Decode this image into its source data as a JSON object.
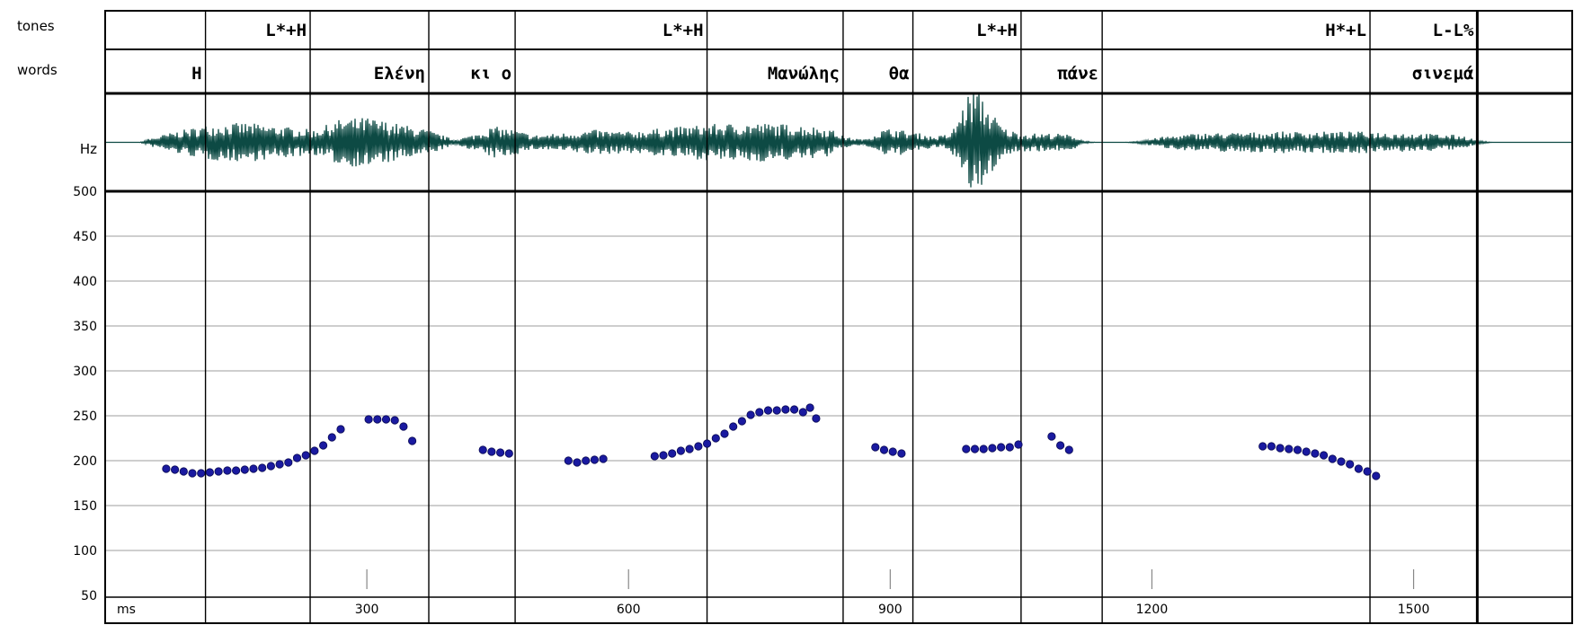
{
  "tier_labels": {
    "tones": "tones",
    "words": "words"
  },
  "wave_label": "Hz",
  "colors": {
    "waveform": "#0d4a44",
    "points": "#1a1aa0",
    "grid": "#bdbdbd",
    "boundary": "#000000",
    "background": "#ffffff"
  },
  "tones": [
    {
      "label": "L*+H",
      "end_ms": 235
    },
    {
      "label": "L*+H",
      "end_ms": 690
    },
    {
      "label": "L*+H",
      "end_ms": 1050
    },
    {
      "label": "H*+L",
      "end_ms": 1450
    },
    {
      "label": "L-L%",
      "end_ms": 1573
    }
  ],
  "words": [
    {
      "label": "Η",
      "start_ms": 0,
      "end_ms": 115
    },
    {
      "label": "Ελένη",
      "start_ms": 235,
      "end_ms": 371
    },
    {
      "label": "κι ο",
      "start_ms": 371,
      "end_ms": 470
    },
    {
      "label": "Μανώλης",
      "start_ms": 690,
      "end_ms": 846
    },
    {
      "label": "θα",
      "start_ms": 846,
      "end_ms": 926
    },
    {
      "label": "πάνε",
      "start_ms": 1050,
      "end_ms": 1143
    },
    {
      "label": "σινεμά",
      "start_ms": 1450,
      "end_ms": 1573
    }
  ],
  "word_boundaries_ms": [
    115,
    235,
    371,
    470,
    690,
    846,
    926,
    1050,
    1143,
    1450,
    1573
  ],
  "chart_data": {
    "type": "scatter",
    "title": "",
    "xlabel": "ms",
    "ylabel": "",
    "xlim": [
      0,
      1620
    ],
    "ylim": [
      50,
      500
    ],
    "x_ticks": [
      300,
      600,
      900,
      1200,
      1500
    ],
    "y_ticks": [
      50,
      100,
      150,
      200,
      250,
      300,
      350,
      400,
      450,
      500
    ],
    "grid": true,
    "series": [
      {
        "points": [
          [
            70,
            191
          ],
          [
            80,
            190
          ],
          [
            90,
            188
          ],
          [
            100,
            186
          ],
          [
            110,
            186
          ],
          [
            120,
            187
          ],
          [
            130,
            188
          ],
          [
            140,
            189
          ],
          [
            150,
            189
          ],
          [
            160,
            190
          ],
          [
            170,
            191
          ],
          [
            180,
            192
          ],
          [
            190,
            194
          ],
          [
            200,
            196
          ],
          [
            210,
            198
          ],
          [
            220,
            203
          ],
          [
            230,
            206
          ],
          [
            240,
            211
          ],
          [
            250,
            217
          ],
          [
            260,
            226
          ],
          [
            270,
            235
          ],
          [
            302,
            246
          ],
          [
            312,
            246
          ],
          [
            322,
            246
          ],
          [
            332,
            245
          ],
          [
            342,
            238
          ],
          [
            352,
            222
          ],
          [
            433,
            212
          ],
          [
            443,
            210
          ],
          [
            453,
            209
          ],
          [
            463,
            208
          ],
          [
            531,
            200
          ],
          [
            541,
            198
          ],
          [
            551,
            200
          ],
          [
            561,
            201
          ],
          [
            571,
            202
          ],
          [
            630,
            205
          ],
          [
            640,
            206
          ],
          [
            650,
            208
          ],
          [
            660,
            211
          ],
          [
            670,
            213
          ],
          [
            680,
            216
          ],
          [
            690,
            219
          ],
          [
            700,
            225
          ],
          [
            710,
            230
          ],
          [
            720,
            238
          ],
          [
            730,
            244
          ],
          [
            740,
            251
          ],
          [
            750,
            254
          ],
          [
            760,
            256
          ],
          [
            770,
            256
          ],
          [
            780,
            257
          ],
          [
            790,
            257
          ],
          [
            800,
            254
          ],
          [
            808,
            259
          ],
          [
            815,
            247
          ],
          [
            883,
            215
          ],
          [
            893,
            212
          ],
          [
            903,
            210
          ],
          [
            913,
            208
          ],
          [
            987,
            213
          ],
          [
            997,
            213
          ],
          [
            1007,
            213
          ],
          [
            1017,
            214
          ],
          [
            1027,
            215
          ],
          [
            1037,
            215
          ],
          [
            1047,
            218
          ],
          [
            1085,
            227
          ],
          [
            1095,
            217
          ],
          [
            1105,
            212
          ],
          [
            1327,
            216
          ],
          [
            1337,
            216
          ],
          [
            1347,
            214
          ],
          [
            1357,
            213
          ],
          [
            1367,
            212
          ],
          [
            1377,
            210
          ],
          [
            1387,
            208
          ],
          [
            1397,
            206
          ],
          [
            1407,
            202
          ],
          [
            1417,
            199
          ],
          [
            1427,
            196
          ],
          [
            1437,
            191
          ],
          [
            1447,
            188
          ],
          [
            1457,
            183
          ]
        ]
      }
    ]
  }
}
